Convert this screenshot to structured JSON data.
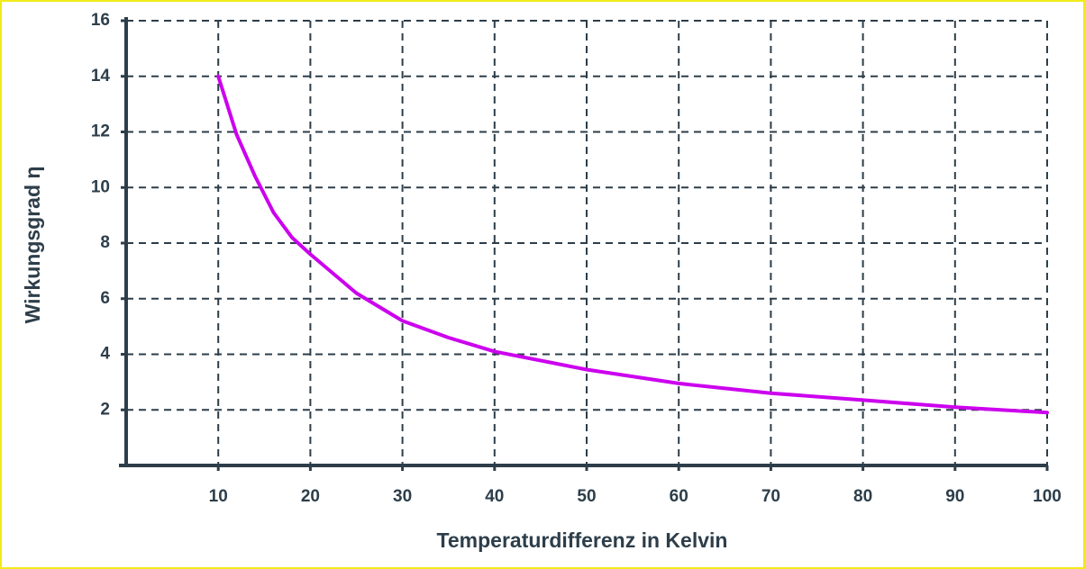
{
  "chart_data": {
    "type": "line",
    "x_label": "Temperaturdifferenz in Kelvin",
    "y_label": "Wirkungsgrad η",
    "x": [
      10,
      12,
      14,
      16,
      18,
      20,
      25,
      30,
      35,
      40,
      50,
      60,
      70,
      80,
      90,
      100
    ],
    "series": [
      {
        "color": "#cc00ee",
        "values": [
          14,
          11.9,
          10.4,
          9.1,
          8.2,
          7.6,
          6.2,
          5.2,
          4.6,
          4.1,
          3.45,
          2.95,
          2.6,
          2.35,
          2.1,
          1.9
        ]
      }
    ],
    "xlim": [
      0,
      100
    ],
    "xticks": [
      10,
      20,
      30,
      40,
      50,
      60,
      70,
      80,
      90,
      100
    ],
    "ylim": [
      0,
      16
    ],
    "yticks": [
      2,
      4,
      6,
      8,
      10,
      12,
      14,
      16
    ],
    "grid": true
  }
}
